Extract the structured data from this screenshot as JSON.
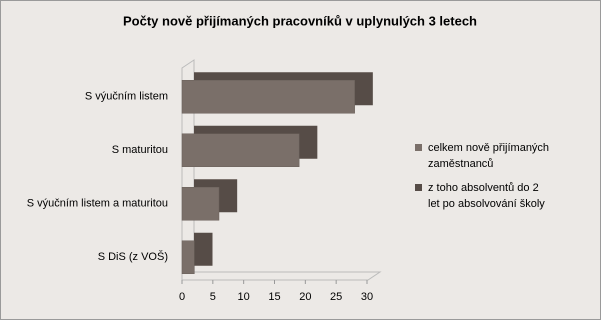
{
  "chart_data": {
    "type": "bar",
    "orientation": "horizontal",
    "title": "Počty nově přijímaných pracovníků v uplynulých 3 letech",
    "categories": [
      "S výučním listem",
      "S maturitou",
      "S výučním listem a maturitou",
      "S DiS  (z VOŠ)"
    ],
    "series": [
      {
        "name": "celkem nově přijímaných zaměstnanců",
        "color": "#7a6f69",
        "values": [
          28,
          19,
          6,
          2
        ]
      },
      {
        "name": "z toho absolventů do 2 let po absolvování školy",
        "color": "#564c47",
        "values": [
          29,
          20,
          7,
          3
        ]
      }
    ],
    "xlim": [
      0,
      30
    ],
    "xticks": [
      0,
      5,
      10,
      15,
      20,
      25,
      30
    ],
    "legend": "right"
  }
}
